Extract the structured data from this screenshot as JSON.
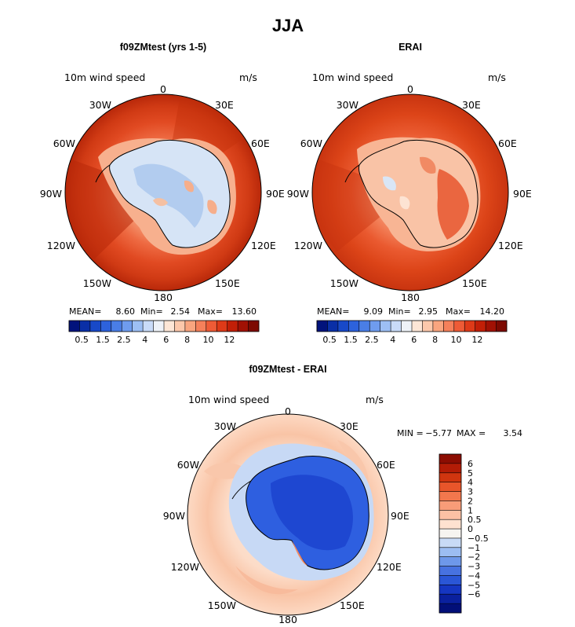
{
  "title": "JJA",
  "chart_data": [
    {
      "type": "heatmap",
      "projection": "south polar stereographic",
      "title": "f09ZMtest (yrs 1-5)",
      "variable": "10m wind speed",
      "units": "m/s",
      "lon_labels": [
        "0",
        "30E",
        "60E",
        "90E",
        "120E",
        "150E",
        "180",
        "150W",
        "120W",
        "90W",
        "60W",
        "30W"
      ],
      "stats": {
        "mean_label": "MEAN=",
        "mean": "8.60",
        "min_label": "Min=",
        "min": "2.54",
        "max_label": "Max=",
        "max": "13.60"
      },
      "colorbar": {
        "orientation": "horizontal",
        "tick_labels": [
          "0.5",
          "1.5",
          "2.5",
          "4",
          "6",
          "8",
          "10",
          "12"
        ],
        "colors": [
          "#02137c",
          "#0a2fa6",
          "#1849c8",
          "#2d62dc",
          "#4a7ee6",
          "#6f9cee",
          "#9dbff4",
          "#c9dbf8",
          "#eef2f8",
          "#fde6d6",
          "#fcc8ab",
          "#f9a57f",
          "#f5805a",
          "#ee5b36",
          "#de3a18",
          "#c21f07",
          "#a11104",
          "#7d0a02"
        ]
      }
    },
    {
      "type": "heatmap",
      "projection": "south polar stereographic",
      "title": "ERAI",
      "variable": "10m wind speed",
      "units": "m/s",
      "lon_labels": [
        "0",
        "30E",
        "60E",
        "90E",
        "120E",
        "150E",
        "180",
        "150W",
        "120W",
        "90W",
        "60W",
        "30W"
      ],
      "stats": {
        "mean_label": "MEAN=",
        "mean": "9.09",
        "min_label": "Min=",
        "min": "2.95",
        "max_label": "Max=",
        "max": "14.20"
      },
      "colorbar": {
        "orientation": "horizontal",
        "tick_labels": [
          "0.5",
          "1.5",
          "2.5",
          "4",
          "6",
          "8",
          "10",
          "12"
        ],
        "colors": [
          "#02137c",
          "#0a2fa6",
          "#1849c8",
          "#2d62dc",
          "#4a7ee6",
          "#6f9cee",
          "#9dbff4",
          "#c9dbf8",
          "#eef2f8",
          "#fde6d6",
          "#fcc8ab",
          "#f9a57f",
          "#f5805a",
          "#ee5b36",
          "#de3a18",
          "#c21f07",
          "#a11104",
          "#7d0a02"
        ]
      }
    },
    {
      "type": "heatmap",
      "projection": "south polar stereographic",
      "title": "f09ZMtest - ERAI",
      "variable": "10m wind speed",
      "units": "m/s",
      "lon_labels": [
        "0",
        "30E",
        "60E",
        "90E",
        "120E",
        "150E",
        "180",
        "150W",
        "120W",
        "90W",
        "60W",
        "30W"
      ],
      "stats": {
        "min_label": "MIN =",
        "min": "−5.77",
        "max_label": "MAX =",
        "max": "3.54"
      },
      "colorbar": {
        "orientation": "vertical",
        "tick_labels": [
          "6",
          "5",
          "4",
          "3",
          "2",
          "1",
          "0.5",
          "0",
          "−0.5",
          "−1",
          "−2",
          "−3",
          "−4",
          "−5",
          "−6"
        ],
        "colors": [
          "#8c0d02",
          "#b31c06",
          "#d0350f",
          "#e8552a",
          "#f3774d",
          "#f89c78",
          "#fcc1a4",
          "#fee2d0",
          "#f6f4f0",
          "#c8daf6",
          "#9cbdf2",
          "#6e98ea",
          "#4772e0",
          "#2a56d6",
          "#1536c2",
          "#0a209e",
          "#020f78"
        ]
      }
    }
  ]
}
